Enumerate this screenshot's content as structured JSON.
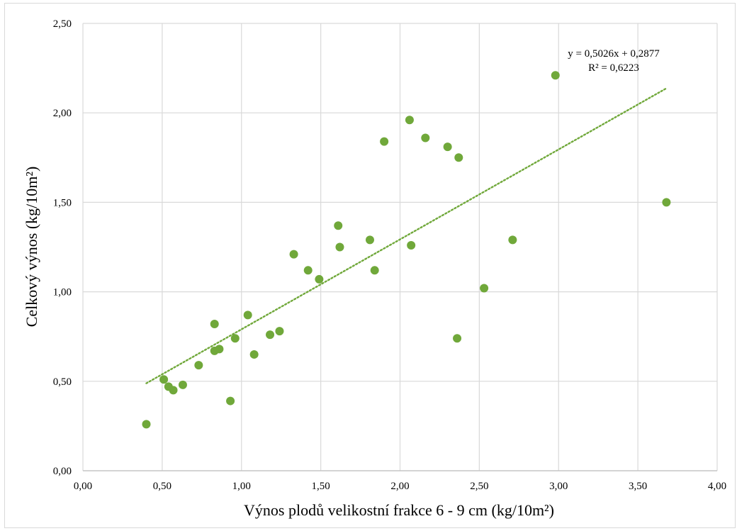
{
  "chart_data": {
    "type": "scatter",
    "xlabel": "Výnos plodů velikostní frakce 6 - 9 cm (kg/10m²)",
    "ylabel": "Celkový výnos (kg/10m²)",
    "xlim": [
      0,
      4
    ],
    "ylim": [
      0,
      2.5
    ],
    "x_ticks": [
      "0,00",
      "0,50",
      "1,00",
      "1,50",
      "2,00",
      "2,50",
      "3,00",
      "3,50",
      "4,00"
    ],
    "y_ticks": [
      "0,00",
      "0,50",
      "1,00",
      "1,50",
      "2,00",
      "2,50"
    ],
    "x_tick_values": [
      0,
      0.5,
      1,
      1.5,
      2,
      2.5,
      3,
      3.5,
      4
    ],
    "y_tick_values": [
      0,
      0.5,
      1,
      1.5,
      2,
      2.5
    ],
    "grid": true,
    "series": [
      {
        "color": "#70a83a",
        "points": [
          {
            "x": 0.4,
            "y": 0.26
          },
          {
            "x": 0.51,
            "y": 0.51
          },
          {
            "x": 0.54,
            "y": 0.47
          },
          {
            "x": 0.57,
            "y": 0.45
          },
          {
            "x": 0.63,
            "y": 0.48
          },
          {
            "x": 0.73,
            "y": 0.59
          },
          {
            "x": 0.83,
            "y": 0.82
          },
          {
            "x": 0.83,
            "y": 0.67
          },
          {
            "x": 0.86,
            "y": 0.68
          },
          {
            "x": 0.93,
            "y": 0.39
          },
          {
            "x": 0.96,
            "y": 0.74
          },
          {
            "x": 1.04,
            "y": 0.87
          },
          {
            "x": 1.08,
            "y": 0.65
          },
          {
            "x": 1.18,
            "y": 0.76
          },
          {
            "x": 1.24,
            "y": 0.78
          },
          {
            "x": 1.33,
            "y": 1.21
          },
          {
            "x": 1.42,
            "y": 1.12
          },
          {
            "x": 1.49,
            "y": 1.07
          },
          {
            "x": 1.61,
            "y": 1.37
          },
          {
            "x": 1.62,
            "y": 1.25
          },
          {
            "x": 1.81,
            "y": 1.29
          },
          {
            "x": 1.84,
            "y": 1.12
          },
          {
            "x": 1.9,
            "y": 1.84
          },
          {
            "x": 2.06,
            "y": 1.96
          },
          {
            "x": 2.07,
            "y": 1.26
          },
          {
            "x": 2.16,
            "y": 1.86
          },
          {
            "x": 2.3,
            "y": 1.81
          },
          {
            "x": 2.36,
            "y": 0.74
          },
          {
            "x": 2.37,
            "y": 1.75
          },
          {
            "x": 2.53,
            "y": 1.02
          },
          {
            "x": 2.71,
            "y": 1.29
          },
          {
            "x": 2.98,
            "y": 2.21
          },
          {
            "x": 3.68,
            "y": 1.5
          }
        ]
      }
    ],
    "trendline": {
      "type": "linear",
      "slope": 0.5026,
      "intercept": 0.2877,
      "x_range": [
        0.4,
        3.68
      ],
      "color": "#70a83a",
      "style": "dotted",
      "equation_label": "y = 0,5026x + 0,2877",
      "r2_label": "R² = 0,6223"
    }
  }
}
